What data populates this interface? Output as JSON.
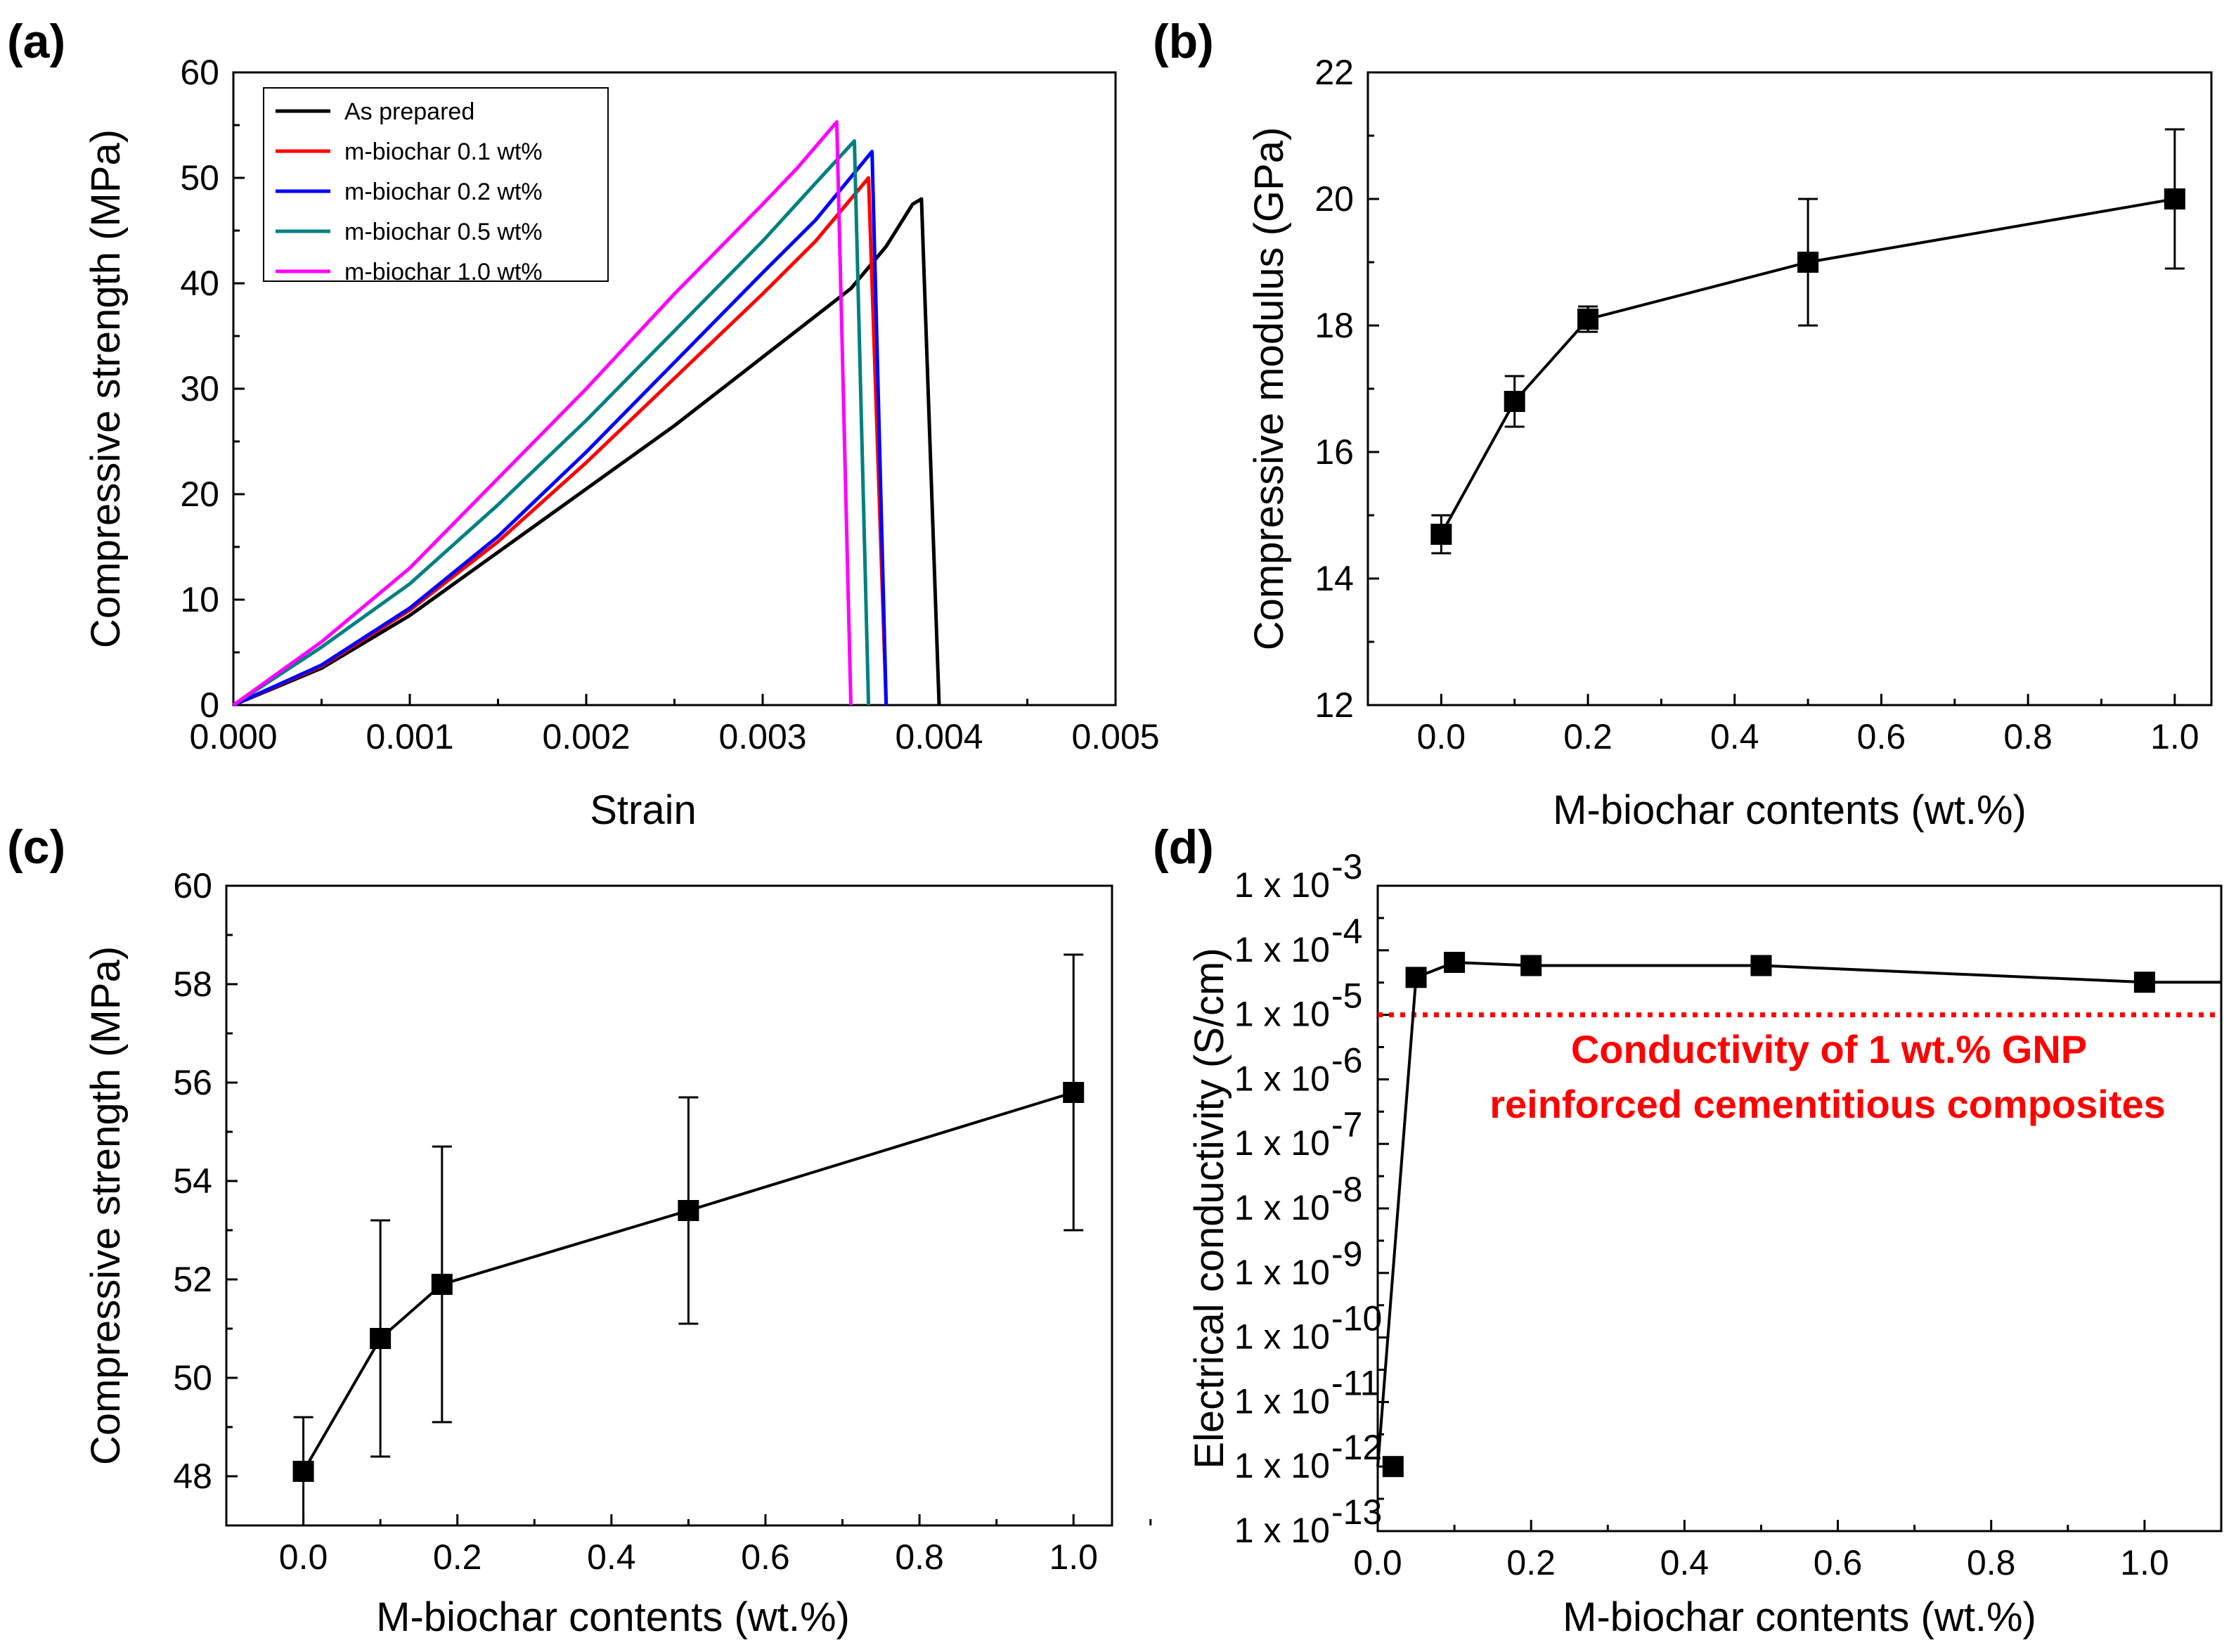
{
  "chart_data": [
    {
      "panel": "(a)",
      "type": "line",
      "xlabel": "Strain",
      "ylabel": "Compressive strength (MPa)",
      "xlim": [
        0,
        0.005
      ],
      "ylim": [
        0,
        60
      ],
      "xticks": [
        "0.000",
        "0.001",
        "0.002",
        "0.003",
        "0.004",
        "0.005"
      ],
      "yticks": [
        "0",
        "10",
        "20",
        "30",
        "40",
        "50",
        "60"
      ],
      "legend_position": "top-left",
      "series": [
        {
          "name": "As prepared",
          "color": "#000000",
          "x": [
            0,
            0.0005,
            0.001,
            0.0015,
            0.002,
            0.0025,
            0.003,
            0.0035,
            0.0037,
            0.00385,
            0.0039,
            0.004
          ],
          "y": [
            0,
            3.5,
            8.5,
            14.5,
            20.5,
            26.5,
            33,
            39.5,
            43.5,
            47.5,
            48,
            0
          ]
        },
        {
          "name": "m-biochar  0.1 wt%",
          "color": "#ff0000",
          "x": [
            0,
            0.0005,
            0.001,
            0.0015,
            0.002,
            0.0025,
            0.003,
            0.0033,
            0.0036,
            0.0037
          ],
          "y": [
            0,
            3.7,
            9,
            15.5,
            23,
            31,
            39,
            44,
            50,
            0
          ]
        },
        {
          "name": "m-biochar  0.2 wt%",
          "color": "#0000ff",
          "x": [
            0,
            0.0005,
            0.001,
            0.0015,
            0.002,
            0.0025,
            0.003,
            0.0033,
            0.00362,
            0.0037
          ],
          "y": [
            0,
            3.8,
            9.2,
            16,
            24,
            32.5,
            41,
            46,
            52.5,
            0
          ]
        },
        {
          "name": "m-biochar  0.5 wt%",
          "color": "#008080",
          "x": [
            0,
            0.0005,
            0.001,
            0.0015,
            0.002,
            0.0025,
            0.003,
            0.0033,
            0.00352,
            0.0036
          ],
          "y": [
            0,
            5.5,
            11.5,
            19,
            27,
            35.5,
            44,
            49.5,
            53.5,
            0
          ]
        },
        {
          "name": "m-biochar  1.0 wt%",
          "color": "#ff00ff",
          "x": [
            0,
            0.0005,
            0.001,
            0.0015,
            0.002,
            0.0025,
            0.003,
            0.0032,
            0.00342,
            0.0035
          ],
          "y": [
            0,
            6,
            13,
            21.5,
            30,
            39,
            47.5,
            51,
            55.3,
            0
          ]
        }
      ]
    },
    {
      "panel": "(b)",
      "type": "line",
      "xlabel": "M-biochar contents (wt.%)",
      "ylabel": "Compressive modulus (GPa)",
      "xlim": [
        -0.1,
        1.05
      ],
      "ylim": [
        12,
        22
      ],
      "xticks": [
        "0.0",
        "0.2",
        "0.4",
        "0.6",
        "0.8",
        "1.0"
      ],
      "yticks": [
        "12",
        "14",
        "16",
        "18",
        "20",
        "22"
      ],
      "x": [
        0.0,
        0.1,
        0.2,
        0.5,
        1.0
      ],
      "y": [
        14.7,
        16.8,
        18.1,
        19.0,
        20.0
      ],
      "error": [
        0.3,
        0.4,
        0.2,
        1.0,
        1.1
      ]
    },
    {
      "panel": "(c)",
      "type": "line",
      "xlabel": "M-biochar contents (wt.%)",
      "ylabel": "Compressive strength (MPa)",
      "xlim": [
        -0.1,
        1.05
      ],
      "ylim": [
        47,
        60
      ],
      "xticks": [
        "0.0",
        "0.2",
        "0.4",
        "0.6",
        "0.8",
        "1.0"
      ],
      "yticks": [
        "48",
        "50",
        "52",
        "54",
        "56",
        "58",
        "60"
      ],
      "x": [
        0.0,
        0.1,
        0.18,
        0.5,
        1.0
      ],
      "y": [
        48.1,
        50.8,
        51.9,
        53.4,
        55.8
      ],
      "error": [
        1.1,
        2.4,
        2.8,
        2.3,
        2.8
      ]
    },
    {
      "panel": "(d)",
      "type": "line",
      "xlabel": "M-biochar contents (wt.%)",
      "ylabel": "Electrical conductivity (S/cm)",
      "xlim": [
        0,
        1.1
      ],
      "ylim_log10": [
        -13,
        -3
      ],
      "y_scale": "log",
      "xticks": [
        "0.0",
        "0.2",
        "0.4",
        "0.6",
        "0.8",
        "1.0"
      ],
      "yticks": [
        {
          "base": "1 x 10",
          "exp": "-3"
        },
        {
          "base": "1 x 10",
          "exp": "-4"
        },
        {
          "base": "1 x 10",
          "exp": "-5"
        },
        {
          "base": "1 x 10",
          "exp": "-6"
        },
        {
          "base": "1 x 10",
          "exp": "-7"
        },
        {
          "base": "1 x 10",
          "exp": "-8"
        },
        {
          "base": "1 x 10",
          "exp": "-9"
        },
        {
          "base": "1 x 10",
          "exp": "-10"
        },
        {
          "base": "1 x 10",
          "exp": "-11"
        },
        {
          "base": "1 x 10",
          "exp": "-12"
        },
        {
          "base": "1 x 10",
          "exp": "-13"
        }
      ],
      "x": [
        0.0,
        0.05,
        0.1,
        0.2,
        0.5,
        1.0
      ],
      "y": [
        1e-12,
        3.8e-05,
        6.5e-05,
        5.8e-05,
        5.8e-05,
        3.2e-05
      ],
      "line_end": {
        "x": 1.1,
        "y": 3.2e-05
      },
      "reference_line": {
        "y": 1e-05,
        "color": "#ff0000"
      },
      "annotation_lines": [
        "Conductivity of 1 wt.% GNP",
        "reinforced cementitious composites"
      ],
      "annotation_color": "#ff0000"
    }
  ]
}
